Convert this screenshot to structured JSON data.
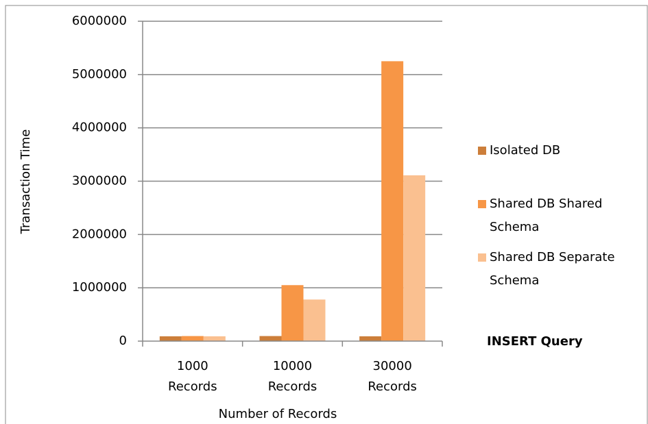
{
  "chart_data": {
    "type": "bar",
    "categories": [
      "1000 Records",
      "10000 Records",
      "30000 Records"
    ],
    "series": [
      {
        "name": "Isolated DB",
        "color": "#cc7e3a",
        "values": [
          90000,
          95000,
          90000
        ]
      },
      {
        "name": "Shared DB Shared Schema",
        "color": "#f79646",
        "values": [
          95000,
          1050000,
          5250000
        ]
      },
      {
        "name": "Shared DB Separate Schema",
        "color": "#fac090",
        "values": [
          90000,
          780000,
          3110000
        ]
      }
    ],
    "ylim": [
      0,
      6000000
    ],
    "yticks": [
      0,
      1000000,
      2000000,
      3000000,
      4000000,
      5000000,
      6000000
    ],
    "ylabel": "Transaction Time",
    "xlabel": "Number of Records",
    "annotation": "INSERT Query",
    "grid": true,
    "legend": "right"
  }
}
